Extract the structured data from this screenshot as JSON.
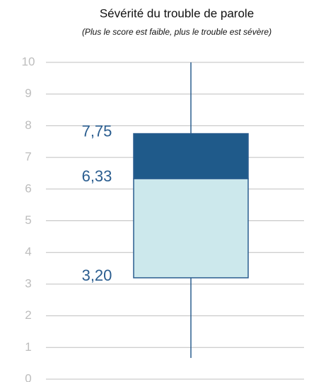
{
  "chart_data": {
    "type": "box",
    "title": "Sévérité du trouble de parole",
    "subtitle": "(Plus le score est faible, plus le trouble est sévère)",
    "ylim": [
      0,
      10
    ],
    "yticks": [
      0,
      1,
      2,
      3,
      4,
      5,
      6,
      7,
      8,
      9,
      10
    ],
    "grid": true,
    "box": {
      "min": 0.67,
      "q1": 3.2,
      "median": 6.33,
      "q3": 7.75,
      "max": 10
    },
    "value_labels": {
      "q1": "3,20",
      "median": "6,33",
      "q3": "7,75"
    },
    "colors": {
      "lower": "#cce8ec",
      "upper": "#1f5a8a",
      "edge": "#2a5d8f"
    }
  }
}
